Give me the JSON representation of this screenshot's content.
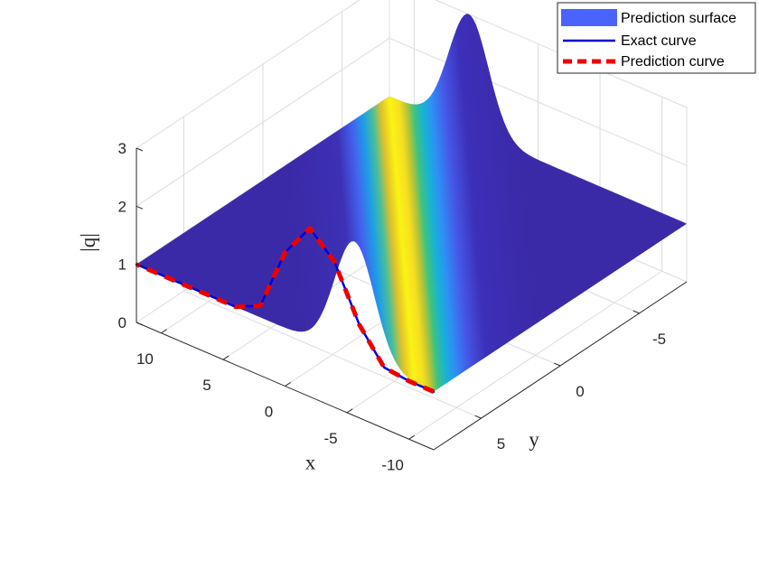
{
  "chart_data": {
    "type": "surface3d",
    "xlabel": "x",
    "ylabel": "y",
    "zlabel": "|q|",
    "xlim": [
      -12,
      12
    ],
    "ylim": [
      -8,
      8
    ],
    "zlim": [
      0,
      3
    ],
    "x_ticks": [
      -10,
      -5,
      0,
      5,
      10
    ],
    "y_ticks": [
      -5,
      0,
      5
    ],
    "z_ticks": [
      0,
      1,
      2,
      3
    ],
    "x_tick_labels": [
      "-10",
      "-5",
      "0",
      "5",
      "10"
    ],
    "y_tick_labels": [
      "-5",
      "0",
      "5"
    ],
    "z_tick_labels": [
      "0",
      "1",
      "2",
      "3"
    ],
    "grid": true,
    "legend_position": "top-right",
    "surface_model": {
      "background_level": 1,
      "peak_level": 3,
      "ridge_slope": 0.7,
      "ridge_width": 1.6
    },
    "series": [
      {
        "name": "Prediction surface",
        "kind": "surface",
        "color": "#4a63ff"
      },
      {
        "name": "Exact curve",
        "kind": "line",
        "color": "#0000d8",
        "y": 8,
        "x": [
          -12,
          -10,
          -8,
          -6,
          -4,
          -2,
          0,
          2,
          4,
          6,
          8,
          10,
          12
        ],
        "z": [
          1.0,
          1.0,
          1.05,
          1.6,
          2.5,
          2.9,
          2.3,
          1.2,
          1.0,
          1.0,
          1.0,
          1.0,
          1.0
        ]
      },
      {
        "name": "Prediction curve",
        "kind": "line",
        "style": "dashed",
        "color": "#ee0000",
        "y": 8,
        "x": [
          -12,
          -10,
          -8,
          -6,
          -4,
          -2,
          0,
          2,
          4,
          6,
          8,
          10,
          12
        ],
        "z": [
          1.0,
          1.0,
          1.05,
          1.6,
          2.5,
          2.9,
          2.3,
          1.2,
          1.0,
          1.0,
          1.0,
          1.0,
          1.0
        ]
      }
    ]
  }
}
